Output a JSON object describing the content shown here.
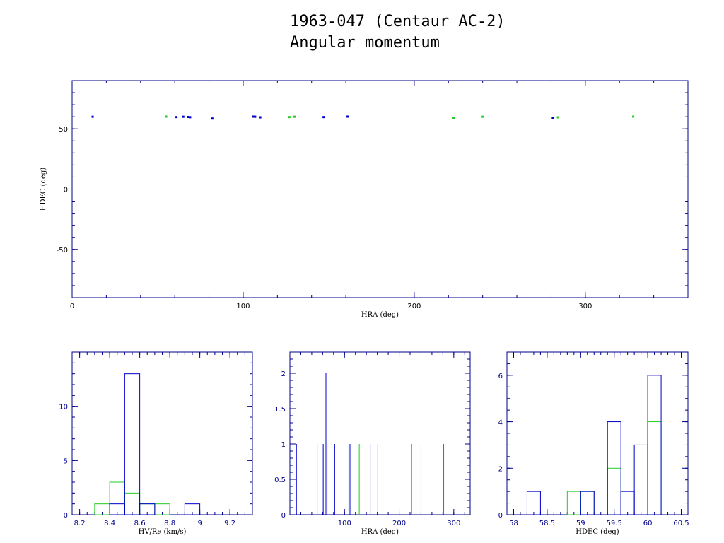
{
  "title": {
    "line1": "1963-047 (Centaur AC-2)",
    "line2": "Angular momentum"
  },
  "colors": {
    "axis": "#00008b",
    "blue_series": "#0000cc",
    "green_series": "#22cc22",
    "text": "#000000"
  },
  "chart_data": [
    {
      "type": "scatter",
      "xlabel": "HRA (deg)",
      "ylabel": "HDEC (deg)",
      "xlim": [
        0,
        360
      ],
      "ylim": [
        -90,
        90
      ],
      "xticks": [
        0,
        100,
        200,
        300
      ],
      "yticks": [
        -50,
        0,
        50
      ],
      "grid": false,
      "series": [
        {
          "color": "blue",
          "points": [
            [
              12,
              60
            ],
            [
              61,
              59.7
            ],
            [
              65,
              60
            ],
            [
              68,
              59.8
            ],
            [
              69,
              59.6
            ],
            [
              82,
              58.5
            ],
            [
              106,
              60.1
            ],
            [
              107,
              60
            ],
            [
              110,
              59.5
            ],
            [
              147,
              59.7
            ],
            [
              161,
              60.1
            ],
            [
              281,
              58.9
            ]
          ]
        },
        {
          "color": "green",
          "points": [
            [
              55,
              60.1
            ],
            [
              127,
              59.7
            ],
            [
              130,
              60
            ],
            [
              223,
              58.8
            ],
            [
              240,
              60
            ],
            [
              284,
              59.5
            ],
            [
              328,
              60.1
            ]
          ]
        }
      ]
    },
    {
      "type": "bar",
      "xlabel": "HV/Re (km/s)",
      "ylabel": "",
      "xlim": [
        8.15,
        9.35
      ],
      "ylim": [
        0,
        15
      ],
      "xticks": [
        8.2,
        8.4,
        8.6,
        8.8,
        9,
        9.2
      ],
      "yticks": [
        0,
        5,
        10
      ],
      "bin_edges": [
        8.3,
        8.4,
        8.5,
        8.6,
        8.7,
        8.8,
        8.9,
        9.0
      ],
      "series": [
        {
          "color": "blue",
          "values": [
            0,
            1,
            13,
            1,
            0,
            0,
            1
          ]
        },
        {
          "color": "green",
          "values": [
            1,
            3,
            2,
            1,
            1,
            0,
            0
          ]
        }
      ]
    },
    {
      "type": "bar",
      "xlabel": "HRA (deg)",
      "ylabel": "",
      "xlim": [
        0,
        330
      ],
      "ylim": [
        0,
        2.3
      ],
      "xticks": [
        100,
        200,
        300
      ],
      "yticks": [
        0,
        0.5,
        1,
        1.5,
        2
      ],
      "series": [
        {
          "color": "blue",
          "x": [
            12,
            61,
            66,
            68,
            82,
            108,
            110,
            147,
            161,
            281
          ],
          "values": [
            1,
            1,
            2,
            1,
            1,
            1,
            1,
            1,
            1,
            1
          ]
        },
        {
          "color": "green",
          "x": [
            50,
            55,
            127,
            130,
            223,
            240,
            284
          ],
          "values": [
            1,
            1,
            1,
            1,
            1,
            1,
            1
          ]
        }
      ]
    },
    {
      "type": "bar",
      "xlabel": "HDEC (deg)",
      "ylabel": "",
      "xlim": [
        57.9,
        60.6
      ],
      "ylim": [
        0,
        7
      ],
      "xticks": [
        58,
        58.5,
        59,
        59.5,
        60,
        60.5
      ],
      "yticks": [
        0,
        2,
        4,
        6
      ],
      "bin_edges": [
        58.2,
        58.4,
        58.6,
        58.8,
        59.0,
        59.2,
        59.4,
        59.6,
        59.8,
        60.0,
        60.2
      ],
      "series": [
        {
          "color": "blue",
          "values": [
            1,
            0,
            0,
            0,
            1,
            0,
            4,
            1,
            3,
            6
          ]
        },
        {
          "color": "green",
          "values": [
            0,
            0,
            0,
            1,
            1,
            0,
            2,
            0,
            0,
            4
          ]
        }
      ]
    }
  ]
}
